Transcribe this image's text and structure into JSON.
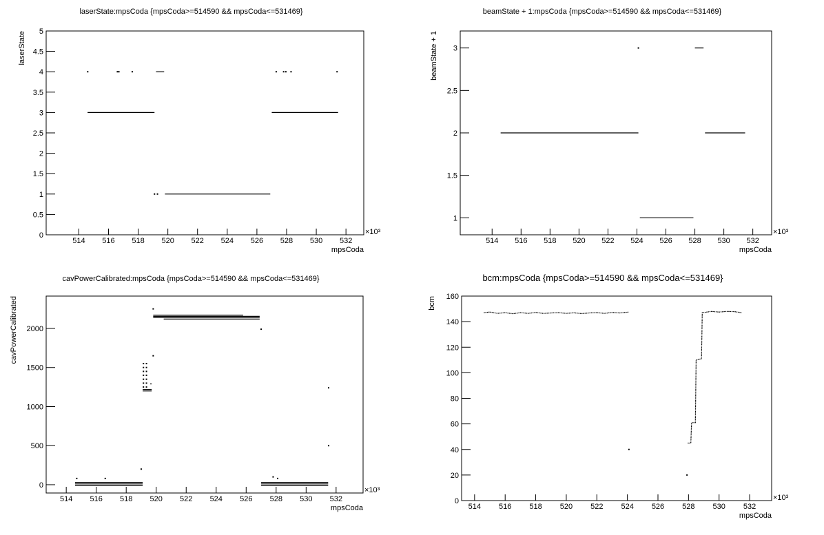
{
  "chart_data": [
    {
      "type": "scatter",
      "title": "laserState:mpsCoda {mpsCoda>=514590 && mpsCoda<=531469}",
      "x_label": "mpsCoda",
      "y_label": "laserState",
      "x_exponent": "×10³",
      "xlim": [
        511.8,
        533.2
      ],
      "ylim": [
        0,
        5
      ],
      "xticks": [
        514,
        516,
        518,
        520,
        522,
        524,
        526,
        528,
        530,
        532
      ],
      "yticks": [
        0,
        0.5,
        1,
        1.5,
        2,
        2.5,
        3,
        3.5,
        4,
        4.5,
        5
      ],
      "segments": [
        {
          "x": [
            514.59,
            519.1
          ],
          "y": 3
        },
        {
          "x": [
            519.2,
            519.75
          ],
          "y": 4
        },
        {
          "x": [
            519.8,
            526.9
          ],
          "y": 1
        },
        {
          "x": [
            527.0,
            531.47
          ],
          "y": 3
        }
      ],
      "points": {
        "x": [
          514.6,
          516.6,
          516.7,
          517.6,
          519.1,
          519.3,
          527.3,
          527.8,
          527.95,
          528.3,
          531.4
        ],
        "y": [
          4,
          4,
          4,
          4,
          1,
          1,
          4,
          4,
          4,
          4,
          4
        ]
      }
    },
    {
      "type": "scatter",
      "title": "beamState + 1:mpsCoda {mpsCoda>=514590 && mpsCoda<=531469}",
      "x_label": "mpsCoda",
      "y_label": "beamState + 1",
      "x_exponent": "×10³",
      "xlim": [
        511.8,
        533.3
      ],
      "ylim": [
        0.8,
        3.2
      ],
      "xticks": [
        514,
        516,
        518,
        520,
        522,
        524,
        526,
        528,
        530,
        532
      ],
      "yticks": [
        1,
        1.5,
        2,
        2.5,
        3
      ],
      "segments": [
        {
          "x": [
            514.59,
            524.1
          ],
          "y": 2
        },
        {
          "x": [
            524.2,
            527.9
          ],
          "y": 1
        },
        {
          "x": [
            528.0,
            528.6
          ],
          "y": 3
        },
        {
          "x": [
            528.7,
            531.47
          ],
          "y": 2
        }
      ],
      "points": {
        "x": [
          524.1
        ],
        "y": [
          3
        ]
      }
    },
    {
      "type": "scatter",
      "title": "cavPowerCalibrated:mpsCoda {mpsCoda>=514590 && mpsCoda<=531469}",
      "x_label": "mpsCoda",
      "y_label": "cavPowerCalibrated",
      "x_exponent": "×10³",
      "xlim": [
        512.66,
        533.8
      ],
      "ylim": [
        -106,
        2414
      ],
      "xticks": [
        514,
        516,
        518,
        520,
        522,
        524,
        526,
        528,
        530,
        532
      ],
      "yticks": [
        0,
        500,
        1000,
        1500,
        2000
      ],
      "segments": [
        {
          "x": [
            514.59,
            519.1
          ],
          "y": 30
        },
        {
          "x": [
            514.59,
            519.1
          ],
          "y": 10
        },
        {
          "x": [
            514.59,
            519.1
          ],
          "y": -10
        },
        {
          "x": [
            519.1,
            519.7
          ],
          "y": 1200
        },
        {
          "x": [
            519.1,
            519.7
          ],
          "y": 1220
        },
        {
          "x": [
            519.6,
            519.7
          ],
          "y": 1290
        },
        {
          "x": [
            519.8,
            525.8
          ],
          "y": 2170
        },
        {
          "x": [
            519.8,
            526.9
          ],
          "y": 2155
        },
        {
          "x": [
            519.8,
            526.9
          ],
          "y": 2140
        },
        {
          "x": [
            520.5,
            526.9
          ],
          "y": 2120
        },
        {
          "x": [
            527.0,
            531.47
          ],
          "y": 30
        },
        {
          "x": [
            527.0,
            531.47
          ],
          "y": 10
        },
        {
          "x": [
            527.0,
            531.47
          ],
          "y": -10
        }
      ],
      "points": {
        "x": [
          519.15,
          519.15,
          519.15,
          519.15,
          519.15,
          519.15,
          519.15,
          519.35,
          519.35,
          519.35,
          519.35,
          519.35,
          519.35,
          519.35,
          519.8,
          519.8,
          519.0,
          516.6,
          514.7,
          531.5,
          531.5,
          527.0,
          527.8,
          528.1
        ],
        "y": [
          1250,
          1300,
          1350,
          1400,
          1450,
          1500,
          1550,
          1250,
          1300,
          1350,
          1400,
          1450,
          1500,
          1550,
          2250,
          1650,
          200,
          80,
          80,
          1240,
          500,
          1990,
          100,
          80
        ]
      }
    },
    {
      "type": "scatter",
      "title": "bcm:mpsCoda {mpsCoda>=514590 && mpsCoda<=531469}",
      "x_label": "mpsCoda",
      "y_label": "bcm",
      "x_exponent": "×10³",
      "xlim": [
        513.15,
        533.44
      ],
      "ylim": [
        0,
        160
      ],
      "xticks": [
        514,
        516,
        518,
        520,
        522,
        524,
        526,
        528,
        530,
        532
      ],
      "yticks": [
        0,
        20,
        40,
        60,
        80,
        100,
        120,
        140,
        160
      ],
      "line": {
        "x": [
          514.6,
          515.0,
          515.5,
          516.0,
          516.5,
          517.0,
          517.5,
          518.0,
          518.5,
          519.0,
          519.5,
          520.0,
          520.5,
          521.0,
          521.5,
          522.0,
          522.5,
          523.0,
          523.5,
          524.1,
          null,
          527.95,
          528.15,
          528.2,
          528.45,
          528.5,
          528.85,
          528.9,
          529.5,
          530.0,
          530.5,
          531.0,
          531.47
        ],
        "y": [
          147,
          147.5,
          146.5,
          147,
          146.2,
          147,
          146.5,
          147.2,
          146.4,
          146.8,
          147,
          146.5,
          146.9,
          146.3,
          146.8,
          147,
          146.5,
          147.2,
          146.8,
          147.5,
          null,
          45,
          45,
          61,
          61,
          110,
          111,
          147,
          148,
          147.5,
          148,
          147.8,
          147
        ]
      },
      "points": {
        "x": [
          524.1,
          527.9
        ],
        "y": [
          40,
          20
        ]
      }
    }
  ]
}
